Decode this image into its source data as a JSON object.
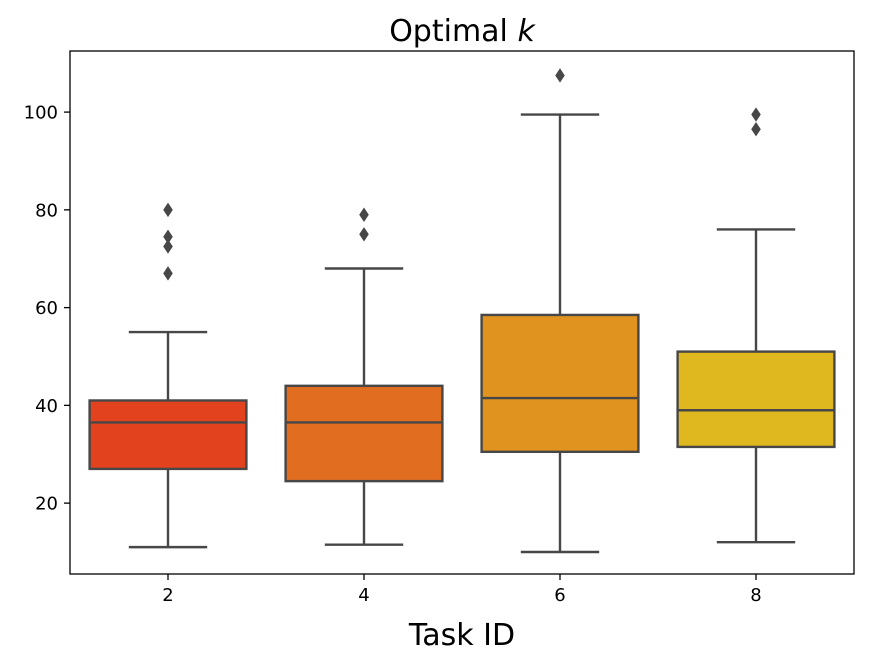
{
  "chart_data": {
    "type": "boxplot",
    "title": "Optimal k",
    "title_prefix": "Optimal",
    "title_var": "k",
    "xlabel": "Task ID",
    "ylabel": "",
    "ylim": [
      5.5,
      112.5
    ],
    "yticks": [
      20,
      40,
      60,
      80,
      100
    ],
    "categories": [
      "2",
      "4",
      "6",
      "8"
    ],
    "colors": [
      "#e2431e",
      "#e16d20",
      "#e0931e",
      "#dfb71e"
    ],
    "line_color": "#474747",
    "boxes": [
      {
        "category": "2",
        "whisker_low": 11,
        "q1": 27,
        "median": 36.5,
        "q3": 41,
        "whisker_high": 55,
        "outliers": [
          67,
          72.5,
          74.5,
          80
        ]
      },
      {
        "category": "4",
        "whisker_low": 11.5,
        "q1": 24.5,
        "median": 36.5,
        "q3": 44,
        "whisker_high": 68,
        "outliers": [
          75,
          79
        ]
      },
      {
        "category": "6",
        "whisker_low": 10,
        "q1": 30.5,
        "median": 41.5,
        "q3": 58.5,
        "whisker_high": 99.5,
        "outliers": [
          107.5
        ]
      },
      {
        "category": "8",
        "whisker_low": 12,
        "q1": 31.5,
        "median": 39,
        "q3": 51,
        "whisker_high": 76,
        "outliers": [
          96.5,
          99.5
        ]
      }
    ]
  }
}
